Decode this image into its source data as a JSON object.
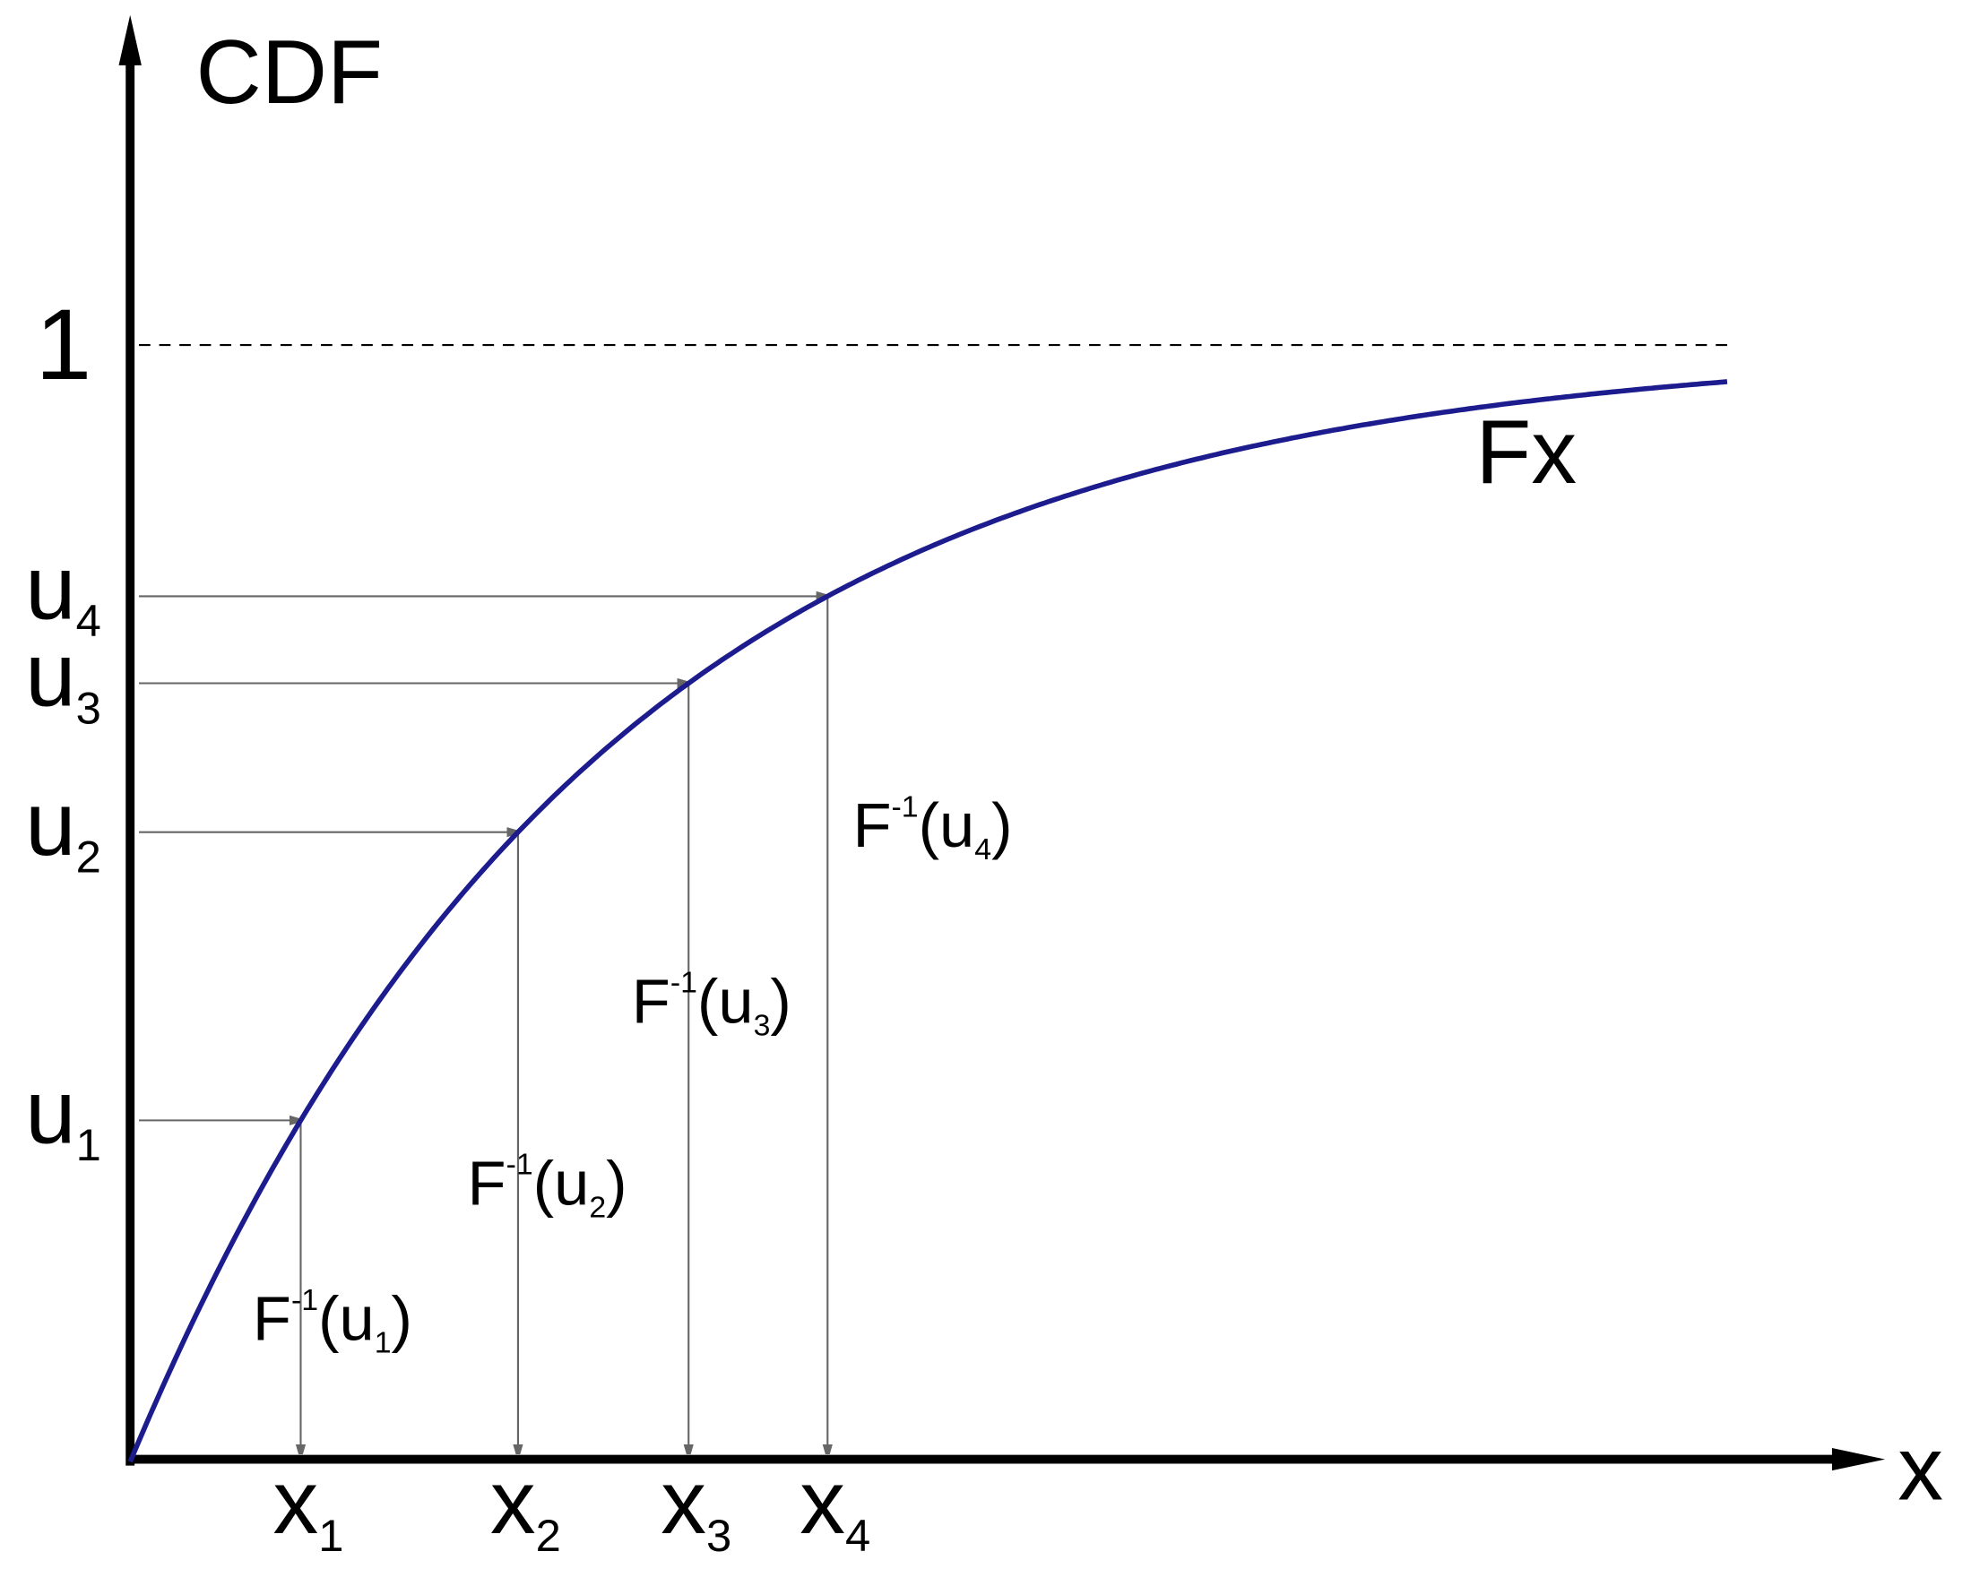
{
  "axes": {
    "y_label": "CDF",
    "x_label": "x",
    "one_label": "1"
  },
  "curve_label": "Fx",
  "u_labels": [
    {
      "base": "u",
      "sub": "1"
    },
    {
      "base": "u",
      "sub": "2"
    },
    {
      "base": "u",
      "sub": "3"
    },
    {
      "base": "u",
      "sub": "4"
    }
  ],
  "x_labels": [
    {
      "base": "x",
      "sub": "1"
    },
    {
      "base": "x",
      "sub": "2"
    },
    {
      "base": "x",
      "sub": "3"
    },
    {
      "base": "x",
      "sub": "4"
    }
  ],
  "inverse_labels": [
    {
      "f": "F",
      "sup": "-1",
      "open": "(u",
      "sub": "1",
      "close": ")"
    },
    {
      "f": "F",
      "sup": "-1",
      "open": "(u",
      "sub": "2",
      "close": ")"
    },
    {
      "f": "F",
      "sup": "-1",
      "open": "(u",
      "sub": "3",
      "close": ")"
    },
    {
      "f": "F",
      "sup": "-1",
      "open": "(u",
      "sub": "4",
      "close": ")"
    }
  ]
}
